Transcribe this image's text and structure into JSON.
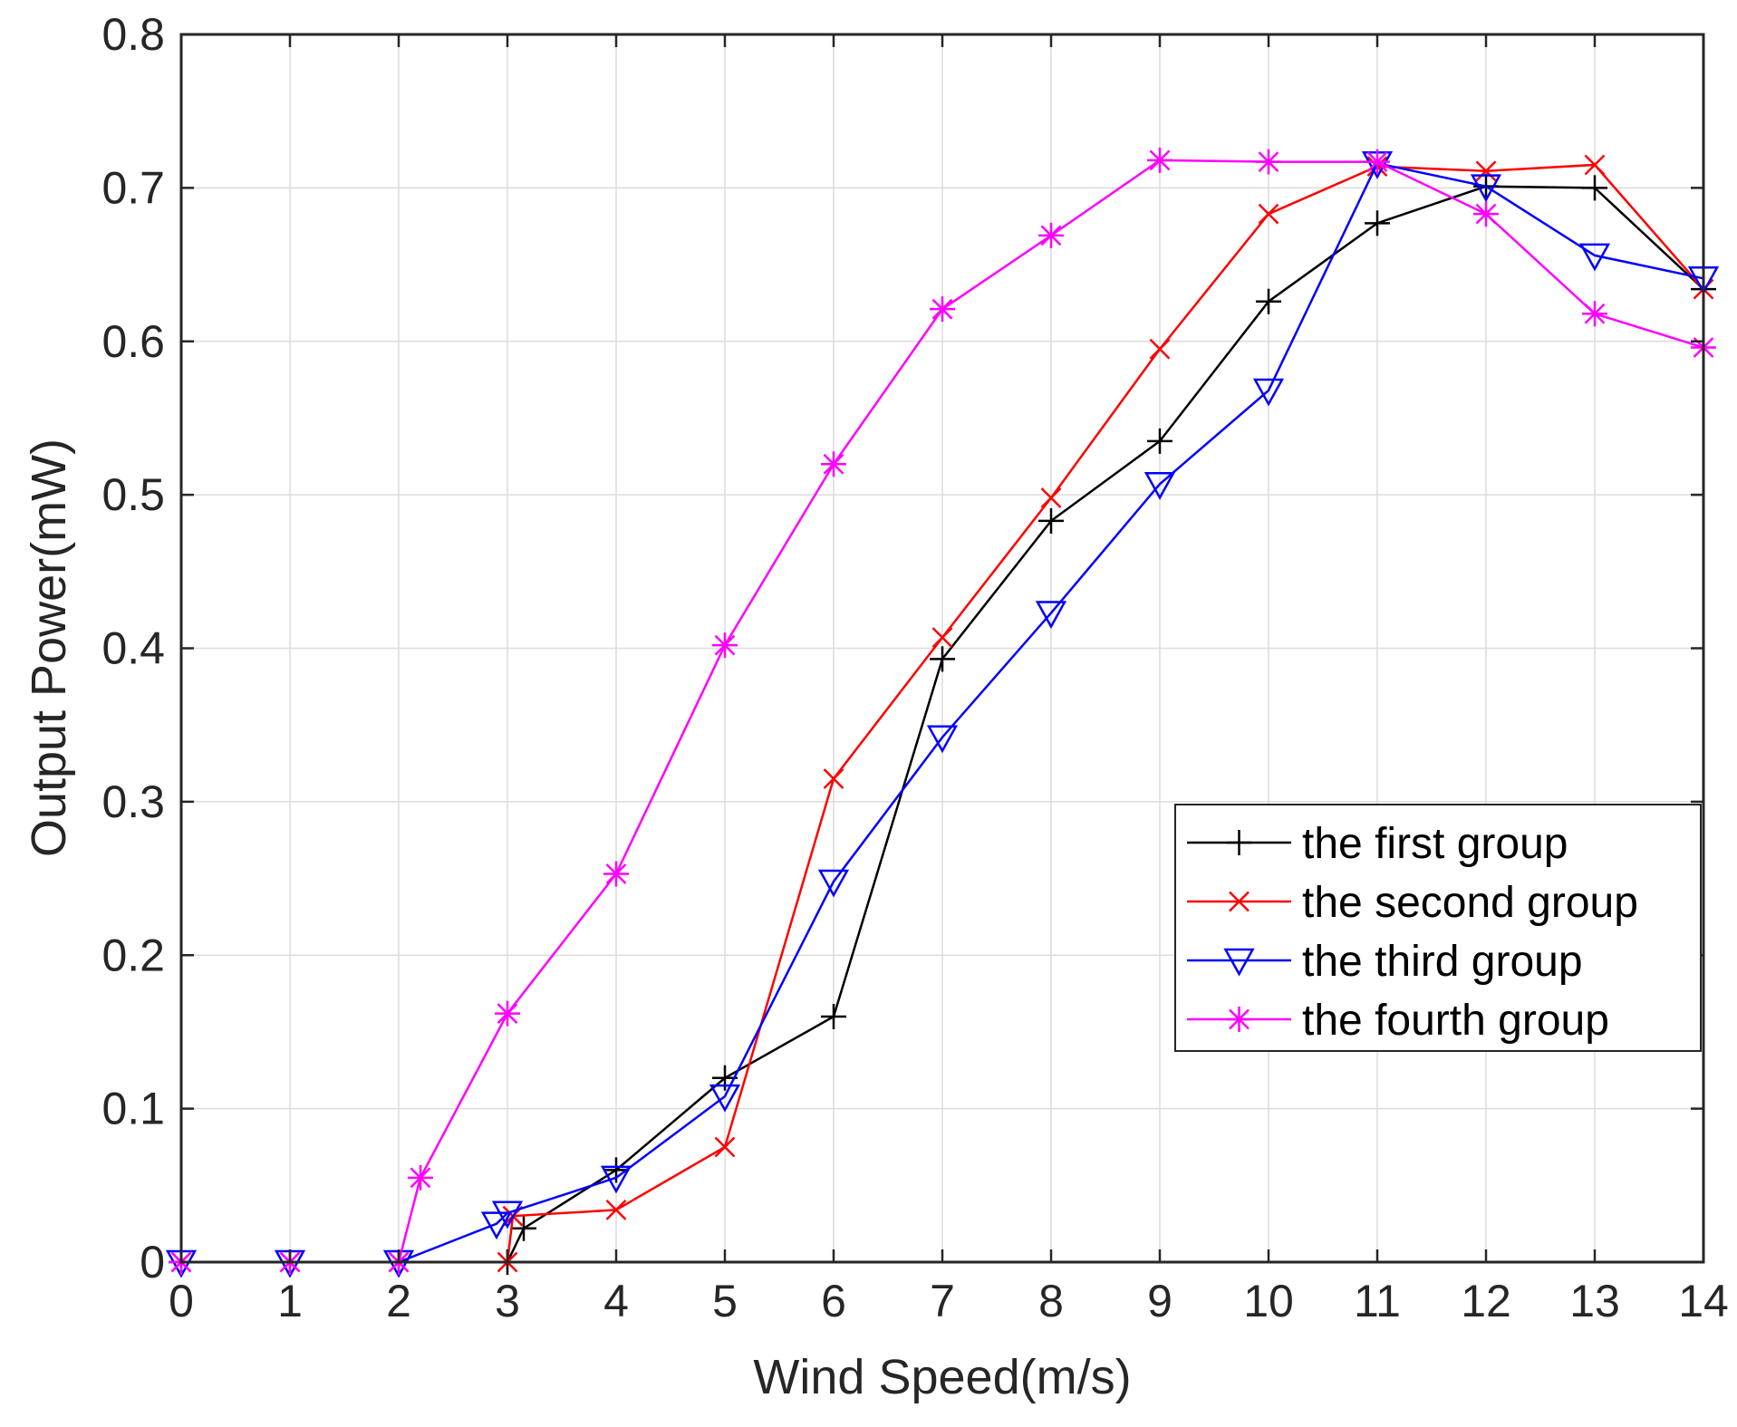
{
  "chart_data": {
    "type": "line",
    "title": "",
    "xlabel": "Wind Speed(m/s)",
    "ylabel": "Output Power(mW)",
    "xlim": [
      0,
      14
    ],
    "ylim": [
      0,
      0.8
    ],
    "grid": true,
    "legend_position": "right-center",
    "x_ticks": [
      "0",
      "1",
      "2",
      "3",
      "4",
      "5",
      "6",
      "7",
      "8",
      "9",
      "10",
      "11",
      "12",
      "13",
      "14"
    ],
    "y_ticks": [
      "0",
      "0.1",
      "0.2",
      "0.3",
      "0.4",
      "0.5",
      "0.6",
      "0.7",
      "0.8"
    ],
    "series": [
      {
        "name": "the first group",
        "color": "#000000",
        "marker": "plus",
        "x": [
          0,
          1,
          2,
          3,
          3.15,
          4,
          5,
          6,
          7,
          8,
          9,
          10,
          11,
          12,
          13,
          14
        ],
        "y": [
          0,
          0,
          0,
          0,
          0.022,
          0.06,
          0.12,
          0.16,
          0.393,
          0.483,
          0.535,
          0.626,
          0.677,
          0.701,
          0.7,
          0.634
        ]
      },
      {
        "name": "the second group",
        "color": "#ff0000",
        "marker": "x",
        "x": [
          0,
          1,
          2,
          3,
          3.05,
          4,
          5,
          6,
          7,
          8,
          9,
          10,
          11,
          12,
          13,
          14
        ],
        "y": [
          0,
          0,
          0,
          0,
          0.03,
          0.034,
          0.075,
          0.315,
          0.407,
          0.498,
          0.595,
          0.683,
          0.714,
          0.711,
          0.715,
          0.634
        ]
      },
      {
        "name": "the third group",
        "color": "#0000ff",
        "marker": "triangle-down",
        "x": [
          0,
          1,
          2,
          2.9,
          3,
          4,
          5,
          6,
          7,
          8,
          9,
          10,
          11,
          12,
          13,
          14
        ],
        "y": [
          0,
          0,
          0,
          0.025,
          0.032,
          0.055,
          0.108,
          0.248,
          0.342,
          0.423,
          0.507,
          0.568,
          0.716,
          0.701,
          0.656,
          0.641
        ]
      },
      {
        "name": "the fourth group",
        "color": "#ff00ff",
        "marker": "asterisk",
        "x": [
          0,
          1,
          2,
          2.2,
          3,
          4,
          5,
          6,
          7,
          8,
          9,
          10,
          11,
          12,
          13,
          14
        ],
        "y": [
          0,
          0,
          0,
          0.055,
          0.162,
          0.253,
          0.402,
          0.52,
          0.621,
          0.669,
          0.718,
          0.717,
          0.717,
          0.683,
          0.618,
          0.596
        ]
      }
    ]
  }
}
